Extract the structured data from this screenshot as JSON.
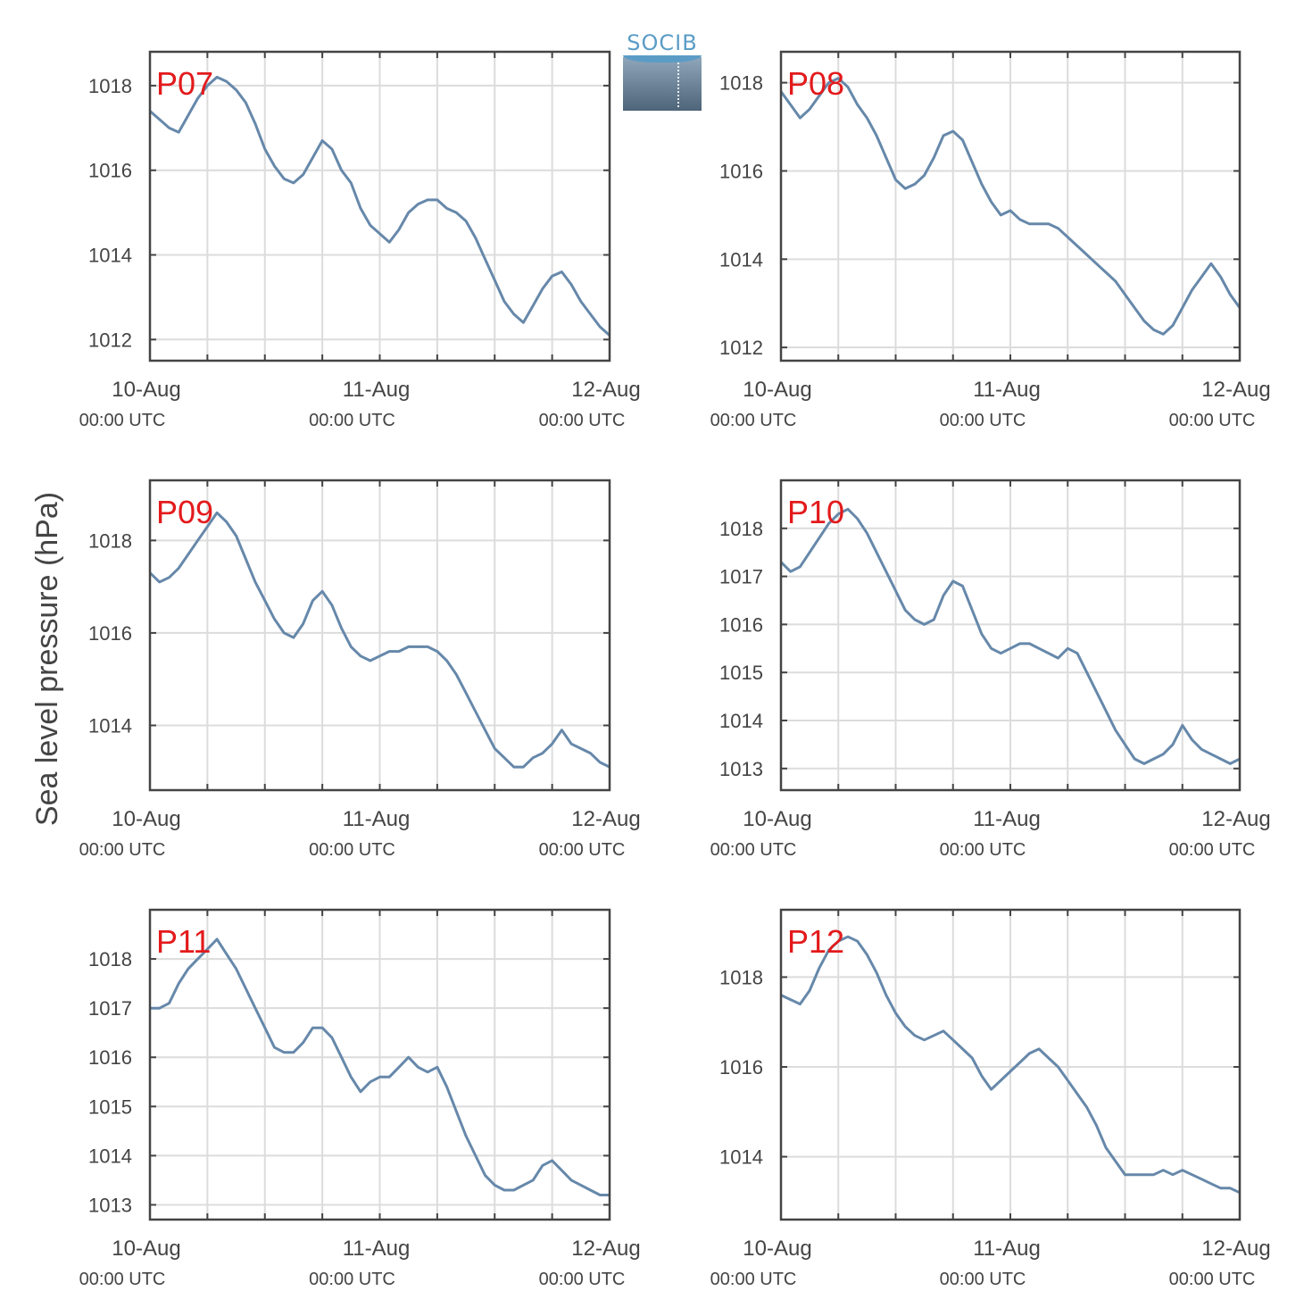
{
  "figure": {
    "ylabel": "Sea level pressure (hPa)",
    "logo_text": "SOCIB",
    "colors": {
      "line": "#6688aa",
      "panel_label": "#e31a1c",
      "grid": "#dcdcdc",
      "axis": "#444444"
    }
  },
  "chart_data": [
    {
      "type": "line",
      "panel": "P07",
      "x_ticks": [
        {
          "label": "10-Aug",
          "sub": "00:00 UTC"
        },
        {
          "label": "11-Aug",
          "sub": "00:00 UTC"
        },
        {
          "label": "12-Aug",
          "sub": "00:00 UTC"
        }
      ],
      "ylim": [
        1011.5,
        1018.8
      ],
      "yticks": [
        1012,
        1014,
        1016,
        1018
      ],
      "grid": true,
      "x": [
        0,
        1,
        2,
        3,
        4,
        5,
        6,
        7,
        8,
        9,
        10,
        11,
        12,
        13,
        14,
        15,
        16,
        17,
        18,
        19,
        20,
        21,
        22,
        23,
        24,
        25,
        26,
        27,
        28,
        29,
        30,
        31,
        32,
        33,
        34,
        35,
        36,
        37,
        38,
        39,
        40,
        41,
        42,
        43,
        44,
        45,
        46,
        47,
        48
      ],
      "values": [
        1017.4,
        1017.2,
        1017.0,
        1016.9,
        1017.3,
        1017.7,
        1018.0,
        1018.2,
        1018.1,
        1017.9,
        1017.6,
        1017.1,
        1016.5,
        1016.1,
        1015.8,
        1015.7,
        1015.9,
        1016.3,
        1016.7,
        1016.5,
        1016.0,
        1015.7,
        1015.1,
        1014.7,
        1014.5,
        1014.3,
        1014.6,
        1015.0,
        1015.2,
        1015.3,
        1015.3,
        1015.1,
        1015.0,
        1014.8,
        1014.4,
        1013.9,
        1013.4,
        1012.9,
        1012.6,
        1012.4,
        1012.8,
        1013.2,
        1013.5,
        1013.6,
        1013.3,
        1012.9,
        1012.6,
        1012.3,
        1012.1
      ]
    },
    {
      "type": "line",
      "panel": "P08",
      "x_ticks": [
        {
          "label": "10-Aug",
          "sub": "00:00 UTC"
        },
        {
          "label": "11-Aug",
          "sub": "00:00 UTC"
        },
        {
          "label": "12-Aug",
          "sub": "00:00 UTC"
        }
      ],
      "ylim": [
        1011.7,
        1018.7
      ],
      "yticks": [
        1012,
        1014,
        1016,
        1018
      ],
      "grid": true,
      "x": [
        0,
        1,
        2,
        3,
        4,
        5,
        6,
        7,
        8,
        9,
        10,
        11,
        12,
        13,
        14,
        15,
        16,
        17,
        18,
        19,
        20,
        21,
        22,
        23,
        24,
        25,
        26,
        27,
        28,
        29,
        30,
        31,
        32,
        33,
        34,
        35,
        36,
        37,
        38,
        39,
        40,
        41,
        42,
        43,
        44,
        45,
        46,
        47,
        48
      ],
      "values": [
        1017.8,
        1017.5,
        1017.2,
        1017.4,
        1017.7,
        1018.0,
        1018.1,
        1017.9,
        1017.5,
        1017.2,
        1016.8,
        1016.3,
        1015.8,
        1015.6,
        1015.7,
        1015.9,
        1016.3,
        1016.8,
        1016.9,
        1016.7,
        1016.2,
        1015.7,
        1015.3,
        1015.0,
        1015.1,
        1014.9,
        1014.8,
        1014.8,
        1014.8,
        1014.7,
        1014.5,
        1014.3,
        1014.1,
        1013.9,
        1013.7,
        1013.5,
        1013.2,
        1012.9,
        1012.6,
        1012.4,
        1012.3,
        1012.5,
        1012.9,
        1013.3,
        1013.6,
        1013.9,
        1013.6,
        1013.2,
        1012.9
      ]
    },
    {
      "type": "line",
      "panel": "P09",
      "x_ticks": [
        {
          "label": "10-Aug",
          "sub": "00:00 UTC"
        },
        {
          "label": "11-Aug",
          "sub": "00:00 UTC"
        },
        {
          "label": "12-Aug",
          "sub": "00:00 UTC"
        }
      ],
      "ylim": [
        1012.6,
        1019.3
      ],
      "yticks": [
        1014,
        1016,
        1018
      ],
      "grid": true,
      "x": [
        0,
        1,
        2,
        3,
        4,
        5,
        6,
        7,
        8,
        9,
        10,
        11,
        12,
        13,
        14,
        15,
        16,
        17,
        18,
        19,
        20,
        21,
        22,
        23,
        24,
        25,
        26,
        27,
        28,
        29,
        30,
        31,
        32,
        33,
        34,
        35,
        36,
        37,
        38,
        39,
        40,
        41,
        42,
        43,
        44,
        45,
        46,
        47,
        48
      ],
      "values": [
        1017.3,
        1017.1,
        1017.2,
        1017.4,
        1017.7,
        1018.0,
        1018.3,
        1018.6,
        1018.4,
        1018.1,
        1017.6,
        1017.1,
        1016.7,
        1016.3,
        1016.0,
        1015.9,
        1016.2,
        1016.7,
        1016.9,
        1016.6,
        1016.1,
        1015.7,
        1015.5,
        1015.4,
        1015.5,
        1015.6,
        1015.6,
        1015.7,
        1015.7,
        1015.7,
        1015.6,
        1015.4,
        1015.1,
        1014.7,
        1014.3,
        1013.9,
        1013.5,
        1013.3,
        1013.1,
        1013.1,
        1013.3,
        1013.4,
        1013.6,
        1013.9,
        1013.6,
        1013.5,
        1013.4,
        1013.2,
        1013.1
      ]
    },
    {
      "type": "line",
      "panel": "P10",
      "x_ticks": [
        {
          "label": "10-Aug",
          "sub": "00:00 UTC"
        },
        {
          "label": "11-Aug",
          "sub": "00:00 UTC"
        },
        {
          "label": "12-Aug",
          "sub": "00:00 UTC"
        }
      ],
      "ylim": [
        1012.55,
        1019.0
      ],
      "yticks": [
        1013,
        1014,
        1015,
        1016,
        1017,
        1018
      ],
      "grid": true,
      "x": [
        0,
        1,
        2,
        3,
        4,
        5,
        6,
        7,
        8,
        9,
        10,
        11,
        12,
        13,
        14,
        15,
        16,
        17,
        18,
        19,
        20,
        21,
        22,
        23,
        24,
        25,
        26,
        27,
        28,
        29,
        30,
        31,
        32,
        33,
        34,
        35,
        36,
        37,
        38,
        39,
        40,
        41,
        42,
        43,
        44,
        45,
        46,
        47,
        48
      ],
      "values": [
        1017.3,
        1017.1,
        1017.2,
        1017.5,
        1017.8,
        1018.1,
        1018.3,
        1018.4,
        1018.2,
        1017.9,
        1017.5,
        1017.1,
        1016.7,
        1016.3,
        1016.1,
        1016.0,
        1016.1,
        1016.6,
        1016.9,
        1016.8,
        1016.3,
        1015.8,
        1015.5,
        1015.4,
        1015.5,
        1015.6,
        1015.6,
        1015.5,
        1015.4,
        1015.3,
        1015.5,
        1015.4,
        1015.0,
        1014.6,
        1014.2,
        1013.8,
        1013.5,
        1013.2,
        1013.1,
        1013.2,
        1013.3,
        1013.5,
        1013.9,
        1013.6,
        1013.4,
        1013.3,
        1013.2,
        1013.1,
        1013.2
      ]
    },
    {
      "type": "line",
      "panel": "P11",
      "x_ticks": [
        {
          "label": "10-Aug",
          "sub": "00:00 UTC"
        },
        {
          "label": "11-Aug",
          "sub": "00:00 UTC"
        },
        {
          "label": "12-Aug",
          "sub": "00:00 UTC"
        }
      ],
      "ylim": [
        1012.7,
        1019.0
      ],
      "yticks": [
        1013,
        1014,
        1015,
        1016,
        1017,
        1018
      ],
      "grid": true,
      "x": [
        0,
        1,
        2,
        3,
        4,
        5,
        6,
        7,
        8,
        9,
        10,
        11,
        12,
        13,
        14,
        15,
        16,
        17,
        18,
        19,
        20,
        21,
        22,
        23,
        24,
        25,
        26,
        27,
        28,
        29,
        30,
        31,
        32,
        33,
        34,
        35,
        36,
        37,
        38,
        39,
        40,
        41,
        42,
        43,
        44,
        45,
        46,
        47,
        48
      ],
      "values": [
        1017.0,
        1017.0,
        1017.1,
        1017.5,
        1017.8,
        1018.0,
        1018.2,
        1018.4,
        1018.1,
        1017.8,
        1017.4,
        1017.0,
        1016.6,
        1016.2,
        1016.1,
        1016.1,
        1016.3,
        1016.6,
        1016.6,
        1016.4,
        1016.0,
        1015.6,
        1015.3,
        1015.5,
        1015.6,
        1015.6,
        1015.8,
        1016.0,
        1015.8,
        1015.7,
        1015.8,
        1015.4,
        1014.9,
        1014.4,
        1014.0,
        1013.6,
        1013.4,
        1013.3,
        1013.3,
        1013.4,
        1013.5,
        1013.8,
        1013.9,
        1013.7,
        1013.5,
        1013.4,
        1013.3,
        1013.2,
        1013.2
      ]
    },
    {
      "type": "line",
      "panel": "P12",
      "x_ticks": [
        {
          "label": "10-Aug",
          "sub": "00:00 UTC"
        },
        {
          "label": "11-Aug",
          "sub": "00:00 UTC"
        },
        {
          "label": "12-Aug",
          "sub": "00:00 UTC"
        }
      ],
      "ylim": [
        1012.6,
        1019.5
      ],
      "yticks": [
        1014,
        1016,
        1018
      ],
      "grid": true,
      "x": [
        0,
        1,
        2,
        3,
        4,
        5,
        6,
        7,
        8,
        9,
        10,
        11,
        12,
        13,
        14,
        15,
        16,
        17,
        18,
        19,
        20,
        21,
        22,
        23,
        24,
        25,
        26,
        27,
        28,
        29,
        30,
        31,
        32,
        33,
        34,
        35,
        36,
        37,
        38,
        39,
        40,
        41,
        42,
        43,
        44,
        45,
        46,
        47,
        48
      ],
      "values": [
        1017.6,
        1017.5,
        1017.4,
        1017.7,
        1018.2,
        1018.6,
        1018.8,
        1018.9,
        1018.8,
        1018.5,
        1018.1,
        1017.6,
        1017.2,
        1016.9,
        1016.7,
        1016.6,
        1016.7,
        1016.8,
        1016.6,
        1016.4,
        1016.2,
        1015.8,
        1015.5,
        1015.7,
        1015.9,
        1016.1,
        1016.3,
        1016.4,
        1016.2,
        1016.0,
        1015.7,
        1015.4,
        1015.1,
        1014.7,
        1014.2,
        1013.9,
        1013.6,
        1013.6,
        1013.6,
        1013.6,
        1013.7,
        1013.6,
        1013.7,
        1013.6,
        1013.5,
        1013.4,
        1013.3,
        1013.3,
        1013.2
      ]
    }
  ]
}
